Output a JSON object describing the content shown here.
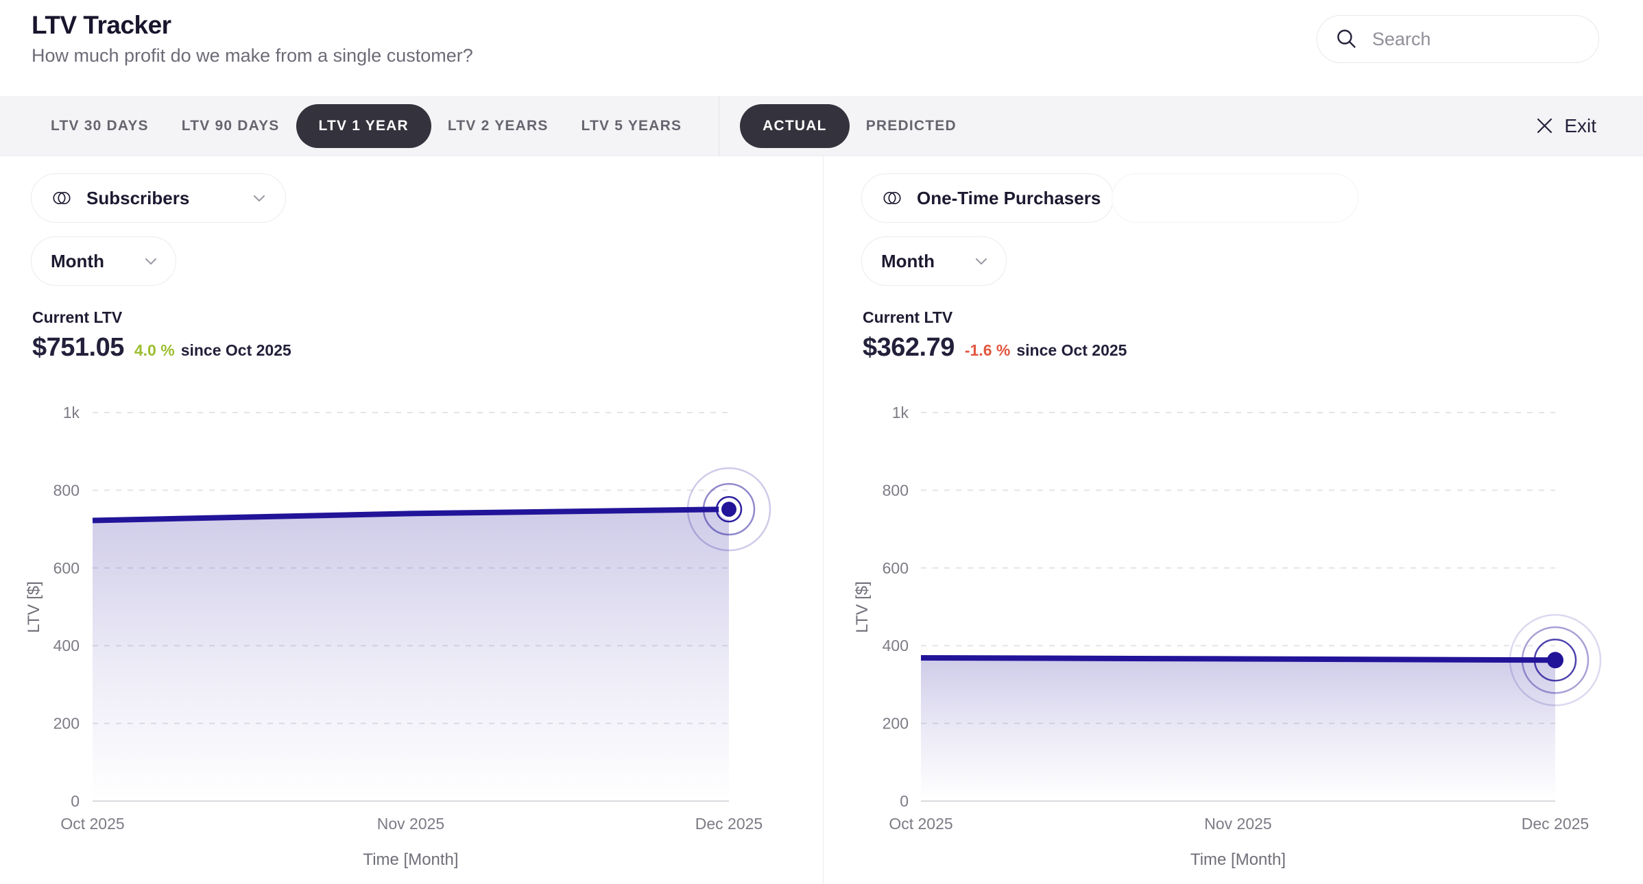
{
  "header": {
    "title": "LTV Tracker",
    "subtitle": "How much profit do we make from a single customer?",
    "search_placeholder": "Search"
  },
  "tabs": {
    "period": [
      {
        "label": "LTV 30 DAYS",
        "active": false
      },
      {
        "label": "LTV 90 DAYS",
        "active": false
      },
      {
        "label": "LTV 1 YEAR",
        "active": true
      },
      {
        "label": "LTV 2 YEARS",
        "active": false
      },
      {
        "label": "LTV 5 YEARS",
        "active": false
      }
    ],
    "mode": [
      {
        "label": "ACTUAL",
        "active": true
      },
      {
        "label": "PREDICTED",
        "active": false
      }
    ],
    "exit_label": "Exit"
  },
  "icons": {
    "search": "magnifier",
    "segment": "overlapping-circles",
    "dropdown": "chevron-down",
    "exit": "x-mark"
  },
  "colors": {
    "accent_line": "#221499",
    "delta_positive": "#9cbe2f",
    "delta_negative": "#e2563f",
    "tab_active_bg": "#34323c",
    "tab_bar_bg": "#f4f4f6"
  },
  "panels": [
    {
      "segment": "Subscribers",
      "granularity": "Month",
      "stat_label": "Current LTV",
      "value": "$751.05",
      "delta": "4.0 %",
      "delta_color": "#9cbe2f",
      "since": "since Oct 2025",
      "chart_data": {
        "type": "area",
        "x": [
          "Oct 2025",
          "Nov 2025",
          "Dec 2025"
        ],
        "values": [
          722.2,
          740.0,
          751.05
        ],
        "ylim": [
          0,
          1000
        ],
        "yticks": [
          0,
          200,
          400,
          600,
          800,
          1000
        ],
        "ytick_labels": [
          "0",
          "200",
          "400",
          "600",
          "800",
          "1k"
        ],
        "xlabel": "Time [Month]",
        "ylabel": "LTV [$]",
        "line_color": "#221499",
        "grid": "dashed-horizontal",
        "marker": {
          "dot_r": 11,
          "halo_r": 15,
          "rings": [
            {
              "r": 18,
              "opacity": 0.95
            },
            {
              "r": 37,
              "opacity": 0.5
            },
            {
              "r": 60,
              "opacity": 0.22
            }
          ]
        }
      }
    },
    {
      "segment": "One-Time Purchasers",
      "granularity": "Month",
      "stat_label": "Current LTV",
      "value": "$362.79",
      "delta": "-1.6 %",
      "delta_color": "#e2563f",
      "since": "since Oct 2025",
      "chart_data": {
        "type": "area",
        "x": [
          "Oct 2025",
          "Nov 2025",
          "Dec 2025"
        ],
        "values": [
          368.7,
          366.0,
          362.79
        ],
        "ylim": [
          0,
          1000
        ],
        "yticks": [
          0,
          200,
          400,
          600,
          800,
          1000
        ],
        "ytick_labels": [
          "0",
          "200",
          "400",
          "600",
          "800",
          "1k"
        ],
        "xlabel": "Time [Month]",
        "ylabel": "LTV [$]",
        "line_color": "#221499",
        "grid": "dashed-horizontal",
        "marker": {
          "dot_r": 12,
          "halo_r": 0,
          "rings": [
            {
              "r": 30,
              "opacity": 0.8
            },
            {
              "r": 48,
              "opacity": 0.4
            },
            {
              "r": 66,
              "opacity": 0.16
            }
          ]
        }
      }
    }
  ]
}
